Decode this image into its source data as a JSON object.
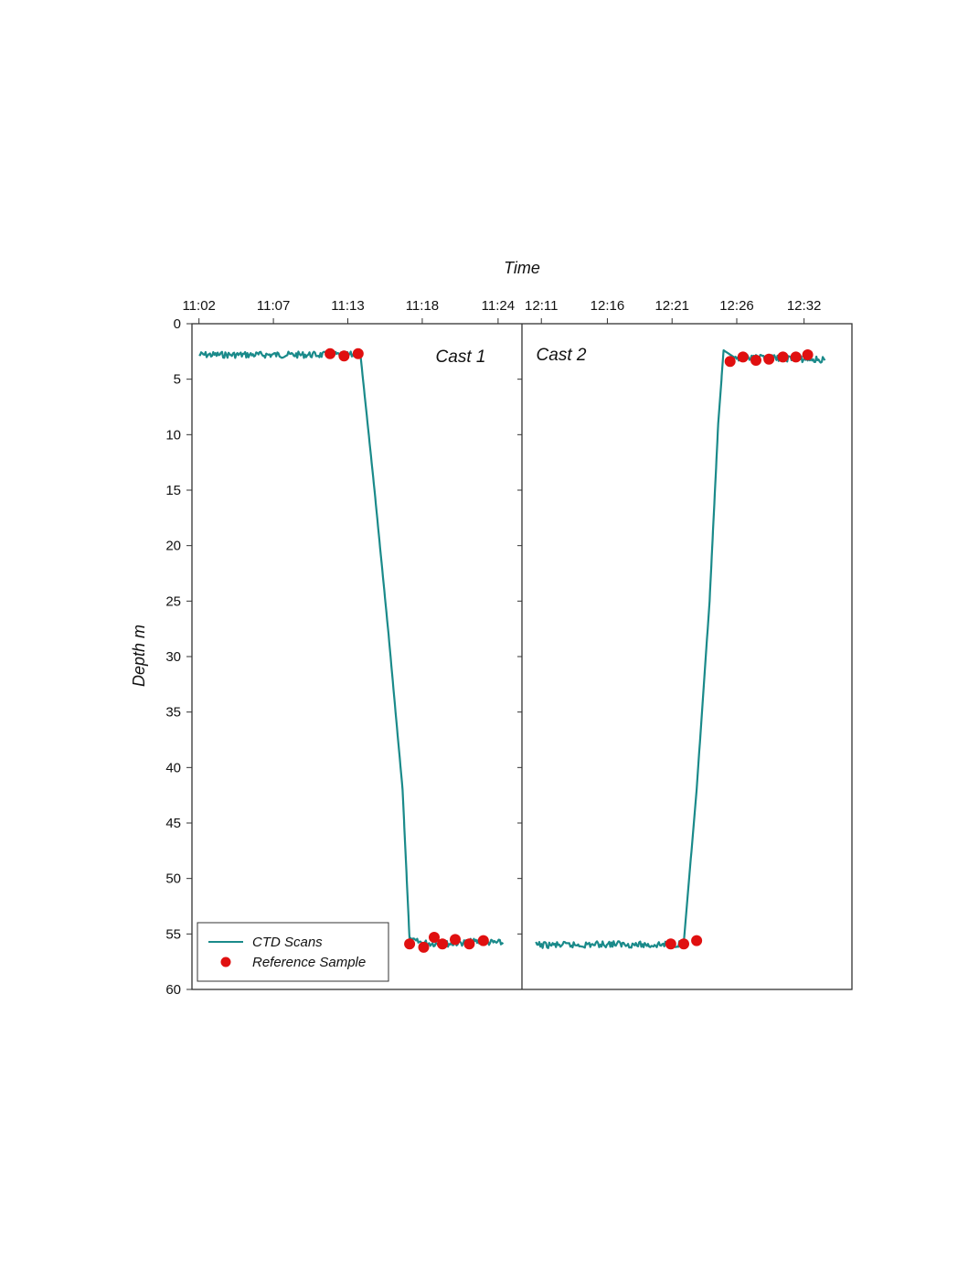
{
  "chart_data": {
    "type": "line",
    "xlabel": "Time",
    "ylabel": "Depth m",
    "ylim": [
      0,
      60
    ],
    "y_inverted": true,
    "y_ticks": [
      "0",
      "5",
      "10",
      "15",
      "20",
      "25",
      "30",
      "35",
      "40",
      "45",
      "50",
      "55",
      "60"
    ],
    "grid": false,
    "legend": {
      "placement": "bottom-left",
      "entries": [
        {
          "label": "CTD Scans",
          "marker": "line",
          "color": "#1a8a8a"
        },
        {
          "label": "Reference Sample",
          "marker": "circle",
          "color": "#e01010"
        }
      ]
    },
    "colors": {
      "ctd": "#1a8a8a",
      "reference": "#e01010"
    },
    "panels": [
      {
        "label": "Cast 1",
        "xlim_minutes": [
          662,
          685.5
        ],
        "x_ticks": [
          {
            "label": "11:02",
            "minutes": 662.5
          },
          {
            "label": "11:07",
            "minutes": 667.8
          },
          {
            "label": "11:13",
            "minutes": 673.1
          },
          {
            "label": "11:18",
            "minutes": 678.4
          },
          {
            "label": "11:24",
            "minutes": 683.8
          }
        ],
        "series": [
          {
            "name": "CTD Scans",
            "noise": true,
            "x": [
              "11:02:30",
              "11:05:00",
              "11:08:00",
              "11:11:00",
              "11:13:00",
              "11:14:00",
              "11:15:00",
              "11:16:00",
              "11:17:00",
              "11:17:30",
              "11:18:30",
              "11:20:00",
              "11:22:00",
              "11:24:00",
              "11:24:10"
            ],
            "y": [
              2.8,
              2.8,
              2.8,
              2.8,
              2.8,
              2.8,
              15,
              28,
              42,
              55.6,
              55.8,
              55.9,
              55.7,
              55.8,
              55.9
            ]
          },
          {
            "name": "Reference Sample",
            "x": [
              "11:11:50",
              "11:12:50",
              "11:13:50",
              "11:17:30",
              "11:18:30",
              "11:19:15",
              "11:19:50",
              "11:20:45",
              "11:21:45",
              "11:22:45"
            ],
            "y": [
              2.7,
              2.9,
              2.7,
              55.9,
              56.2,
              55.3,
              55.9,
              55.5,
              55.9,
              55.6
            ]
          }
        ]
      },
      {
        "label": "Cast 2",
        "xlim_minutes": [
          730,
          755.5
        ],
        "x_ticks": [
          {
            "label": "12:11",
            "minutes": 731.5
          },
          {
            "label": "12:16",
            "minutes": 736.6
          },
          {
            "label": "12:21",
            "minutes": 741.6
          },
          {
            "label": "12:26",
            "minutes": 746.6
          },
          {
            "label": "12:32",
            "minutes": 751.8
          }
        ],
        "series": [
          {
            "name": "CTD Scans",
            "noise": true,
            "x": [
              "12:11:05",
              "12:14:00",
              "12:17:00",
              "12:20:00",
              "12:22:00",
              "12:22:30",
              "12:23:30",
              "12:24:30",
              "12:25:10",
              "12:25:35",
              "12:26:30",
              "12:28:00",
              "12:30:00",
              "12:32:00",
              "12:33:25"
            ],
            "y": [
              56.0,
              56.0,
              55.9,
              56.0,
              55.9,
              55.8,
              42,
              25,
              9,
              2.4,
              3.1,
              3.1,
              3.1,
              3.2,
              3.3
            ]
          },
          {
            "name": "Reference Sample",
            "x": [
              "12:21:30",
              "12:22:30",
              "12:23:30",
              "12:26:05",
              "12:27:05",
              "12:28:05",
              "12:29:05",
              "12:30:10",
              "12:31:10",
              "12:32:05"
            ],
            "y": [
              55.9,
              55.9,
              55.6,
              3.4,
              3.0,
              3.3,
              3.2,
              3.0,
              3.0,
              2.8
            ]
          }
        ]
      }
    ]
  }
}
